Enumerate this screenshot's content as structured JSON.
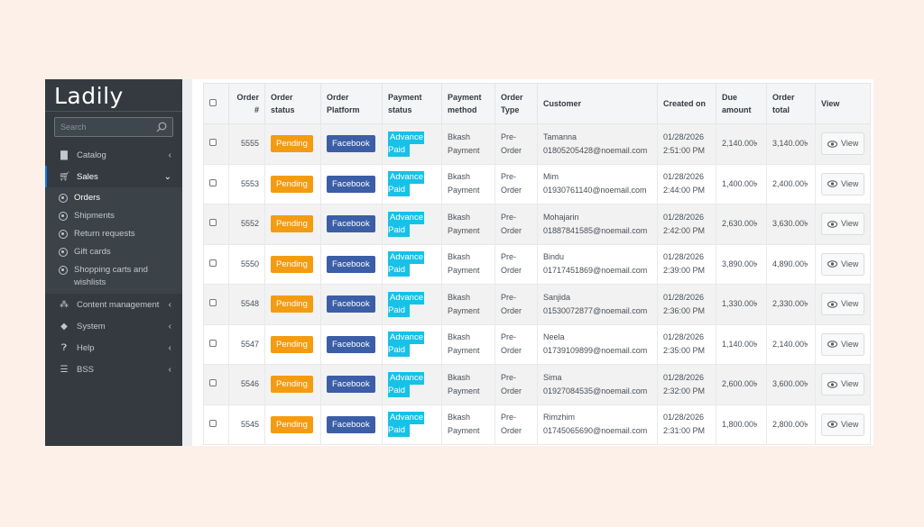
{
  "sidebar": {
    "logo": "Ladily",
    "search_placeholder": "Search",
    "items": [
      {
        "label": "Catalog",
        "icon": "book-icon"
      },
      {
        "label": "Sales",
        "icon": "cart-icon"
      }
    ],
    "sales_sub": [
      "Orders",
      "Shipments",
      "Return requests",
      "Gift cards",
      "Shopping carts and wishlists"
    ],
    "items_after": [
      {
        "label": "Content management",
        "icon": "cubes-icon"
      },
      {
        "label": "System",
        "icon": "cube-icon"
      },
      {
        "label": "Help",
        "icon": "question-icon"
      },
      {
        "label": "BSS",
        "icon": "bars-icon"
      }
    ]
  },
  "table": {
    "headers": [
      "Order #",
      "Order status",
      "Order Platform",
      "Payment status",
      "Payment method",
      "Order Type",
      "Customer",
      "Created on",
      "Due amount",
      "Order total",
      "View"
    ],
    "view_label": "View",
    "rows": [
      {
        "id": "5555",
        "status": "Pending",
        "platform": "Facebook",
        "pay1": "Advance",
        "pay2": "Paid",
        "m1": "Bkash",
        "m2": "Payment",
        "t1": "Pre-",
        "t2": "Order",
        "name": "Tamanna",
        "email": "01805205428@noemail.com",
        "date": "01/28/2026",
        "time": "2:51:00 PM",
        "due": "2,140.00৳",
        "total": "3,140.00৳"
      },
      {
        "id": "5553",
        "status": "Pending",
        "platform": "Facebook",
        "pay1": "Advance",
        "pay2": "Paid",
        "m1": "Bkash",
        "m2": "Payment",
        "t1": "Pre-",
        "t2": "Order",
        "name": "Mim",
        "email": "01930761140@noemail.com",
        "date": "01/28/2026",
        "time": "2:44:00 PM",
        "due": "1,400.00৳",
        "total": "2,400.00৳"
      },
      {
        "id": "5552",
        "status": "Pending",
        "platform": "Facebook",
        "pay1": "Advance",
        "pay2": "Paid",
        "m1": "Bkash",
        "m2": "Payment",
        "t1": "Pre-",
        "t2": "Order",
        "name": "Mohajarin",
        "email": "01887841585@noemail.com",
        "date": "01/28/2026",
        "time": "2:42:00 PM",
        "due": "2,630.00৳",
        "total": "3,630.00৳"
      },
      {
        "id": "5550",
        "status": "Pending",
        "platform": "Facebook",
        "pay1": "Advance",
        "pay2": "Paid",
        "m1": "Bkash",
        "m2": "Payment",
        "t1": "Pre-",
        "t2": "Order",
        "name": "Bindu",
        "email": "01717451869@noemail.com",
        "date": "01/28/2026",
        "time": "2:39:00 PM",
        "due": "3,890.00৳",
        "total": "4,890.00৳"
      },
      {
        "id": "5548",
        "status": "Pending",
        "platform": "Facebook",
        "pay1": "Advance",
        "pay2": "Paid",
        "m1": "Bkash",
        "m2": "Payment",
        "t1": "Pre-",
        "t2": "Order",
        "name": "Sanjida",
        "email": "01530072877@noemail.com",
        "date": "01/28/2026",
        "time": "2:36:00 PM",
        "due": "1,330.00৳",
        "total": "2,330.00৳"
      },
      {
        "id": "5547",
        "status": "Pending",
        "platform": "Facebook",
        "pay1": "Advance",
        "pay2": "Paid",
        "m1": "Bkash",
        "m2": "Payment",
        "t1": "Pre-",
        "t2": "Order",
        "name": "Neela",
        "email": "01739109899@noemail.com",
        "date": "01/28/2026",
        "time": "2:35:00 PM",
        "due": "1,140.00৳",
        "total": "2,140.00৳"
      },
      {
        "id": "5546",
        "status": "Pending",
        "platform": "Facebook",
        "pay1": "Advance",
        "pay2": "Paid",
        "m1": "Bkash",
        "m2": "Payment",
        "t1": "Pre-",
        "t2": "Order",
        "name": "Sima",
        "email": "01927084535@noemail.com",
        "date": "01/28/2026",
        "time": "2:32:00 PM",
        "due": "2,600.00৳",
        "total": "3,600.00৳"
      },
      {
        "id": "5545",
        "status": "Pending",
        "platform": "Facebook",
        "pay1": "Advance",
        "pay2": "Paid",
        "m1": "Bkash",
        "m2": "Payment",
        "t1": "Pre-",
        "t2": "Order",
        "name": "Rimzhim",
        "email": "01745065690@noemail.com",
        "date": "01/28/2026",
        "time": "2:31:00 PM",
        "due": "1,800.00৳",
        "total": "2,800.00৳"
      }
    ]
  },
  "colors": {
    "pending": "#f39c12",
    "facebook": "#3b5ea7",
    "advance_paid": "#17c1e8",
    "sidebar": "#343a40"
  }
}
